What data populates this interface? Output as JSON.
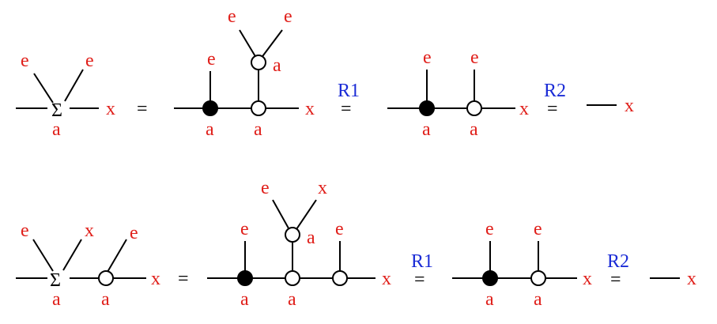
{
  "labels": {
    "e": "e",
    "x": "x",
    "a": "a",
    "sigma": "Σ",
    "eq": "=",
    "r1": "R1",
    "r2": "R2"
  },
  "colors": {
    "label": "#e0201b",
    "rule": "#1a2bd6",
    "line": "#000000"
  }
}
